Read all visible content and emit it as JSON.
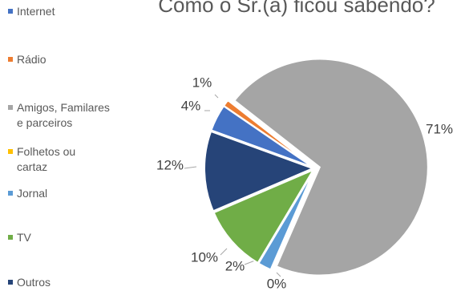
{
  "chart_data": {
    "type": "pie",
    "title": "Como o Sr.(a) ficou sabendo?",
    "categories": [
      "Internet",
      "Rádio",
      "Amigos, Familares\ne parceiros",
      "Folhetos ou\ncartaz",
      "Jornal",
      "TV",
      "Outros"
    ],
    "values": [
      4,
      1,
      71,
      0,
      2,
      10,
      12
    ],
    "value_labels": [
      "4%",
      "1%",
      "71%",
      "0%",
      "2%",
      "10%",
      "12%"
    ],
    "colors": [
      "#4472c4",
      "#ed7d31",
      "#a5a5a5",
      "#ffc000",
      "#5b9bd5",
      "#70ad47",
      "#264478"
    ]
  }
}
